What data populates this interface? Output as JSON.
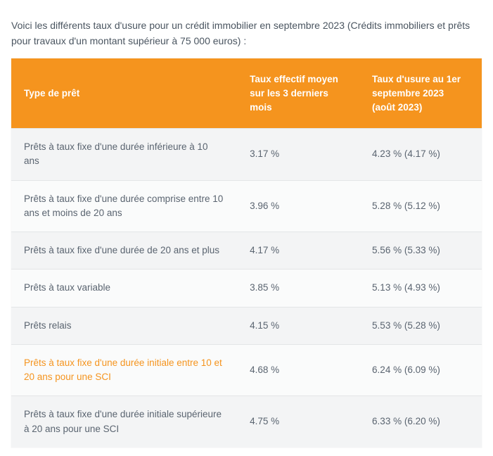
{
  "intro_text": "Voici les différents taux d'usure pour un crédit immobilier en septembre 2023 (Crédits immobiliers et prêts pour travaux d'un montant supérieur à 75 000 euros) :",
  "colors": {
    "intro_text": "#4a5560",
    "header_bg": "#f5941e",
    "header_text": "#ffffff",
    "row_odd_bg": "#f3f4f5",
    "row_even_bg": "#fafbfb",
    "body_text": "#5a6470",
    "link_text": "#f5941e",
    "border": "#e3e5e7"
  },
  "table": {
    "columns": [
      {
        "key": "type",
        "label": "Type de prêt"
      },
      {
        "key": "rate1",
        "label": "Taux effectif moyen sur les 3 derniers mois"
      },
      {
        "key": "rate2",
        "label": "Taux d'usure au 1er septembre 2023 (août 2023)"
      }
    ],
    "rows": [
      {
        "type": "Prêts à taux fixe d'une durée inférieure à 10 ans",
        "rate1": "3.17 %",
        "rate2": "4.23 % (4.17 %)",
        "is_link": false
      },
      {
        "type": "Prêts à taux fixe d'une durée comprise entre 10 ans et moins de 20 ans",
        "rate1": "3.96 %",
        "rate2": "5.28 % (5.12 %)",
        "is_link": false
      },
      {
        "type": "Prêts à taux fixe d'une durée de 20 ans et plus",
        "rate1": "4.17 %",
        "rate2": "5.56 % (5.33 %)",
        "is_link": false
      },
      {
        "type": "Prêts à taux variable",
        "rate1": "3.85 %",
        "rate2": "5.13 % (4.93 %)",
        "is_link": false
      },
      {
        "type": "Prêts relais",
        "rate1": "4.15 %",
        "rate2": "5.53 % (5.28 %)",
        "is_link": false
      },
      {
        "type": "Prêts à taux fixe d'une durée initiale entre 10 et 20 ans pour une SCI",
        "rate1": "4.68 %",
        "rate2": "6.24 % (6.09 %)",
        "is_link": true
      },
      {
        "type": "Prêts à taux fixe d'une durée initiale supérieure à 20 ans pour une SCI",
        "rate1": "4.75 %",
        "rate2": "6.33 % (6.20 %)",
        "is_link": false
      }
    ]
  }
}
